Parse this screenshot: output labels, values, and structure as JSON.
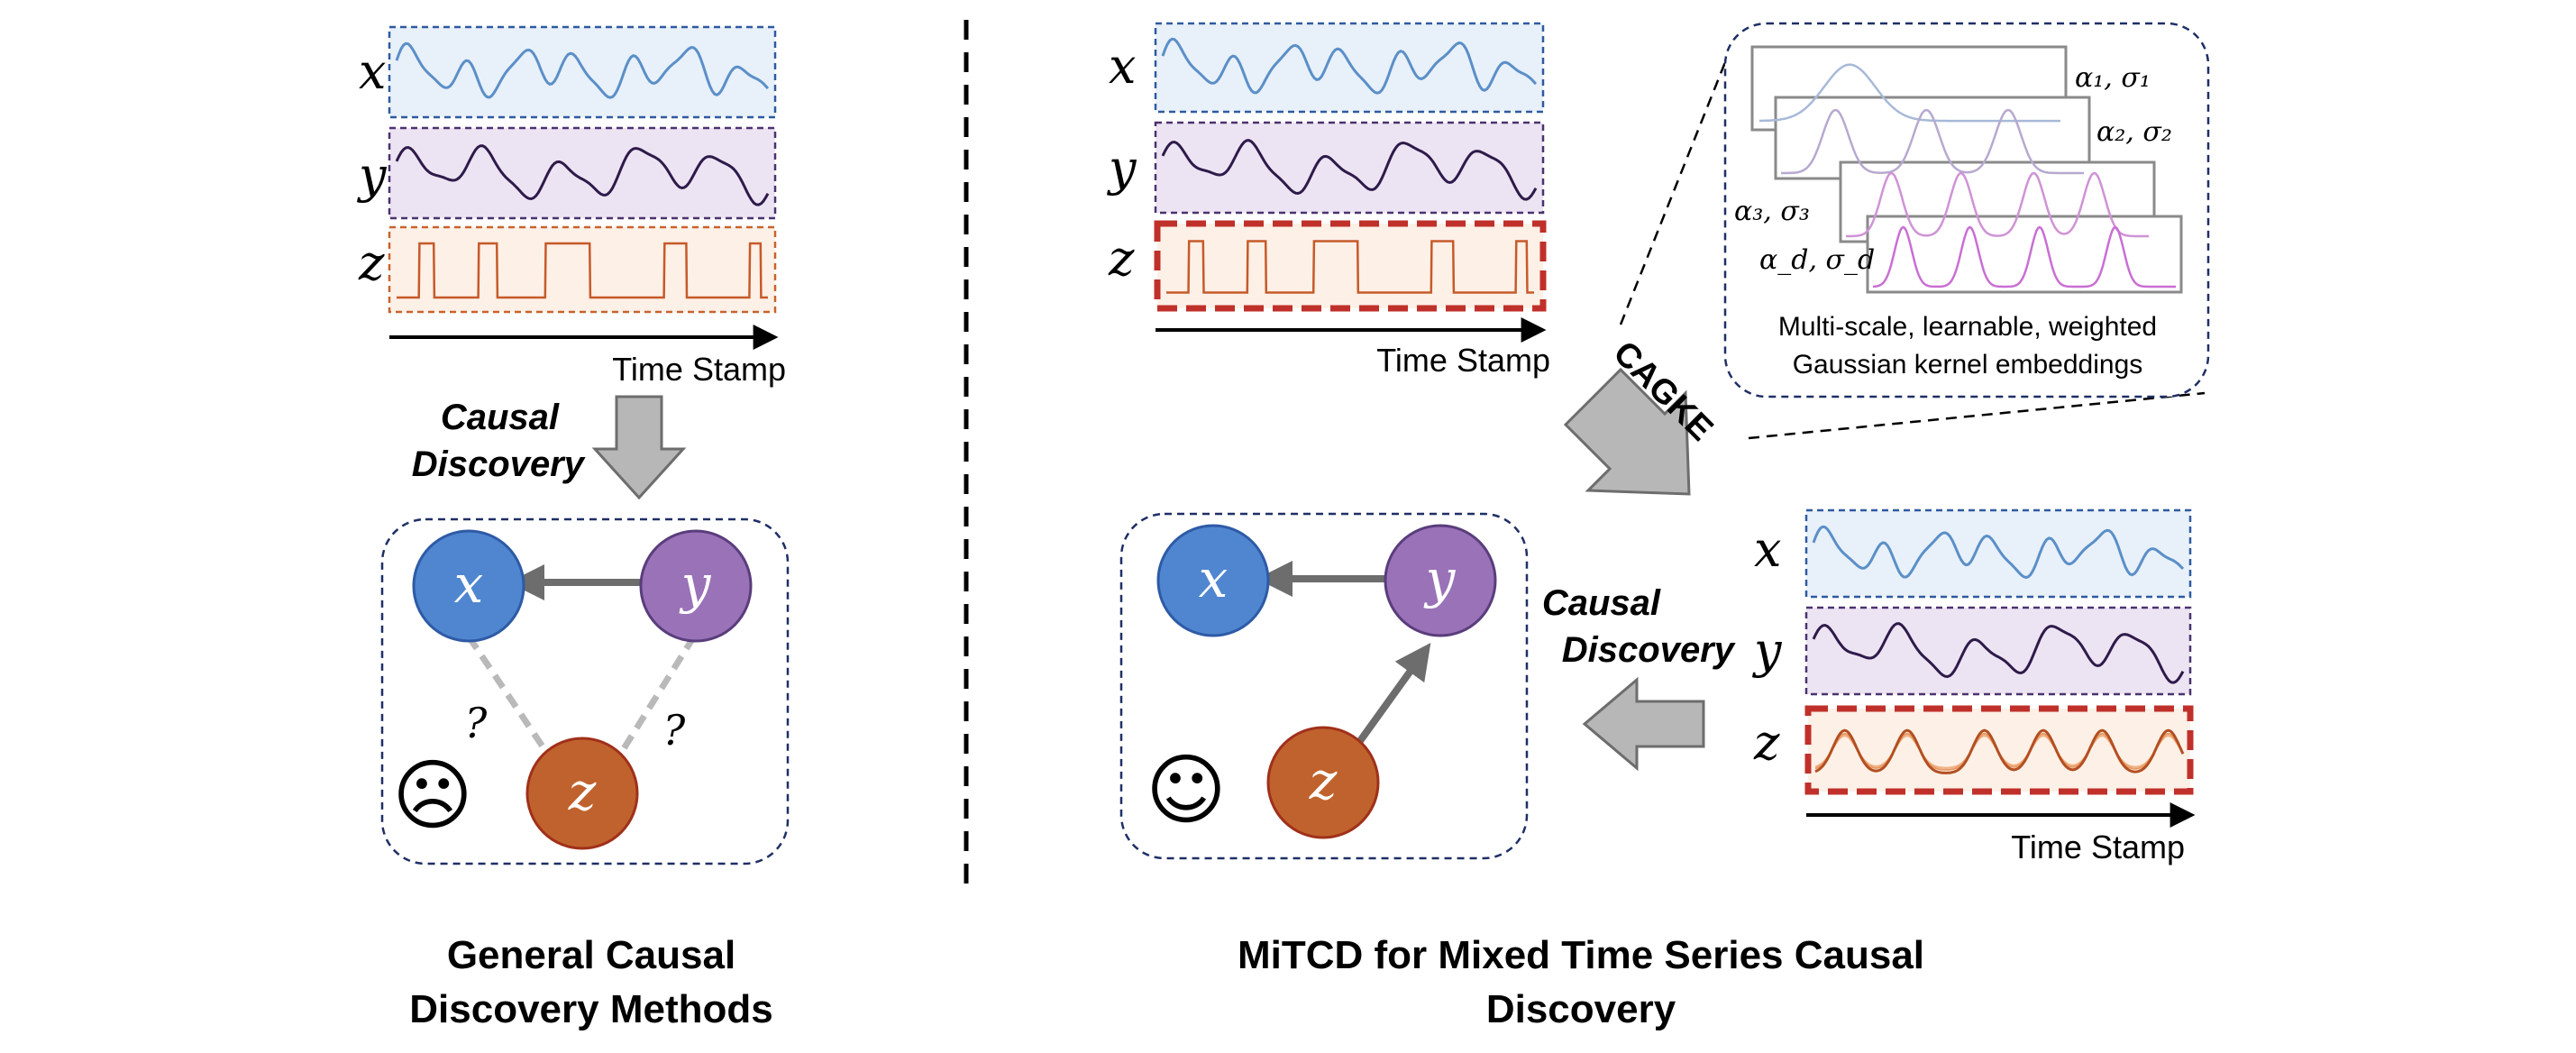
{
  "left_panel": {
    "series_labels": [
      "x",
      "y",
      "z"
    ],
    "time_axis_label": "Time Stamp",
    "discovery_label_line1": "Causal",
    "discovery_label_line2": "Discovery",
    "graph": {
      "nodes": [
        "x",
        "y",
        "z"
      ],
      "unknown_marks": [
        "?",
        "?"
      ],
      "emoji": "☹"
    },
    "caption_line1": "General Causal",
    "caption_line2": "Discovery Methods"
  },
  "right_panel": {
    "series_labels": [
      "x",
      "y",
      "z"
    ],
    "time_axis_label": "Time Stamp",
    "embedding_method": "CAGKE",
    "kernel_params": [
      "α₁, σ₁",
      "α₂, σ₂",
      "α₃, σ₃",
      "α_d, σ_d"
    ],
    "kernel_caption_line1": "Multi-scale, learnable, weighted",
    "kernel_caption_line2": "Gaussian kernel embeddings",
    "output_series_labels": [
      "x",
      "y",
      "z"
    ],
    "output_time_axis_label": "Time Stamp",
    "discovery_label_line1": "Causal",
    "discovery_label_line2": "Discovery",
    "graph": {
      "nodes": [
        "x",
        "y",
        "z"
      ],
      "emoji": "☺"
    },
    "caption_line1": "MiTCD for Mixed Time Series Causal",
    "caption_line2": "Discovery"
  },
  "colors": {
    "x_series": "#5b8fc7",
    "x_bg": "#e8f0fa",
    "y_series": "#2e1a4a",
    "y_bg": "#ece4f2",
    "z_series": "#c65a2a",
    "z_bg": "#fdf0e6",
    "node_x": "#4f86cf",
    "node_y": "#9a72b8",
    "node_z": "#c0622d",
    "highlight_border": "#c0302a",
    "panel_border": "#1f2f66"
  }
}
